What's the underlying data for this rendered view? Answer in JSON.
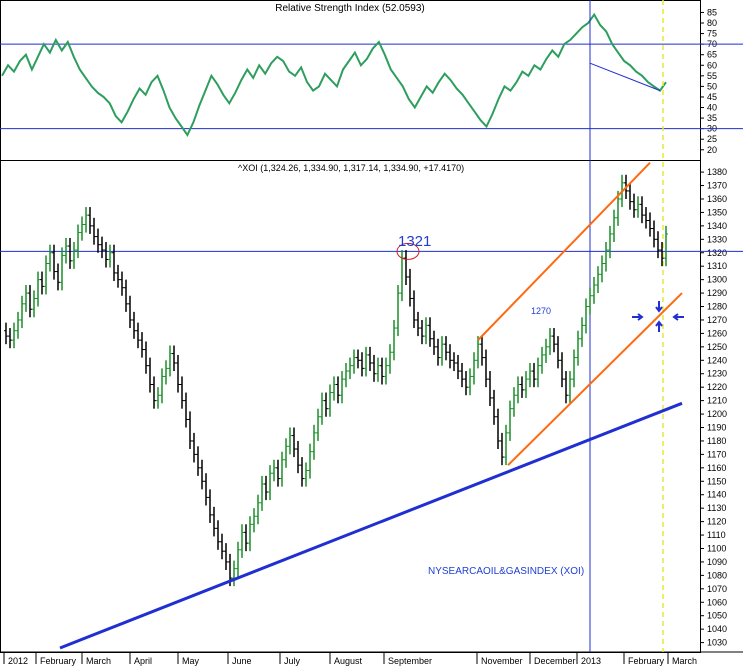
{
  "chart_data": [
    {
      "type": "line",
      "title": "Relative Strength Index (52.0593)",
      "y_ticks": [
        20,
        25,
        30,
        35,
        40,
        45,
        50,
        55,
        60,
        65,
        70,
        75,
        80,
        85
      ],
      "ylim": [
        18,
        89
      ],
      "overbought": 70,
      "oversold": 30,
      "line_color": "#2e9e5e",
      "series": [
        {
          "values": [
            55,
            60,
            57,
            62,
            65,
            58,
            64,
            70,
            66,
            72,
            67,
            71,
            64,
            58,
            54,
            50,
            47,
            45,
            42,
            36,
            33,
            38,
            44,
            49,
            46,
            52,
            55,
            48,
            40,
            35,
            31,
            27,
            33,
            41,
            48,
            55,
            51,
            46,
            42,
            47,
            53,
            58,
            54,
            60,
            56,
            61,
            64,
            62,
            57,
            55,
            59,
            52,
            48,
            50,
            56,
            53,
            50,
            58,
            62,
            66,
            60,
            63,
            68,
            71,
            65,
            58,
            54,
            50,
            44,
            40,
            45,
            50,
            47,
            52,
            56,
            53,
            49,
            46,
            42,
            38,
            34,
            31,
            37,
            44,
            50,
            48,
            52,
            57,
            55,
            60,
            58,
            63,
            67,
            64,
            70,
            72,
            75,
            78,
            80,
            84,
            79,
            76,
            70,
            66,
            62,
            60,
            57,
            55,
            52,
            50,
            48,
            52
          ]
        }
      ],
      "annotation_line": {
        "from": 61,
        "to": 48
      }
    },
    {
      "type": "line",
      "title": "^XOI (1,324.26, 1,334.90, 1,317.14, 1,334.90, +17.4170)",
      "ylabel": "",
      "y_ticks": [
        1030,
        1040,
        1050,
        1060,
        1070,
        1080,
        1090,
        1100,
        1110,
        1120,
        1130,
        1140,
        1150,
        1160,
        1170,
        1180,
        1190,
        1200,
        1210,
        1220,
        1230,
        1240,
        1250,
        1260,
        1270,
        1280,
        1290,
        1300,
        1310,
        1320,
        1330,
        1340,
        1350,
        1360,
        1370,
        1380
      ],
      "ylim": [
        1023,
        1389
      ],
      "x_ticks": [
        "2012",
        "February",
        "March",
        "April",
        "May",
        "June",
        "July",
        "August",
        "September",
        "November",
        "December",
        "2013",
        "February",
        "March"
      ],
      "horizontal_line": 1321,
      "annotations": [
        {
          "text": "1321",
          "color": "#1f3fd1"
        },
        {
          "text": "1270",
          "color": "#1f3fd1"
        },
        {
          "text": "NYSEARCAOIL&GASINDEX (XOI)",
          "color": "#1f3fd1"
        }
      ],
      "trendline_color": "#1f2fd1",
      "channel_color": "#ff6a10",
      "up_color": "#1a8f2a",
      "down_color": "#000000",
      "series": [
        {
          "values": [
            1262,
            1258,
            1255,
            1262,
            1270,
            1282,
            1290,
            1278,
            1286,
            1300,
            1295,
            1312,
            1320,
            1306,
            1298,
            1318,
            1325,
            1314,
            1322,
            1335,
            1341,
            1348,
            1340,
            1332,
            1326,
            1322,
            1315,
            1320,
            1305,
            1300,
            1294,
            1282,
            1270,
            1262,
            1255,
            1248,
            1236,
            1222,
            1210,
            1214,
            1228,
            1234,
            1245,
            1238,
            1222,
            1210,
            1196,
            1180,
            1170,
            1160,
            1150,
            1138,
            1125,
            1115,
            1105,
            1098,
            1090,
            1078,
            1085,
            1099,
            1112,
            1104,
            1118,
            1124,
            1134,
            1148,
            1142,
            1156,
            1160,
            1152,
            1166,
            1176,
            1184,
            1174,
            1162,
            1152,
            1158,
            1172,
            1186,
            1198,
            1210,
            1204,
            1216,
            1222,
            1214,
            1226,
            1232,
            1236,
            1242,
            1240,
            1234,
            1244,
            1238,
            1230,
            1236,
            1228,
            1236,
            1246,
            1264,
            1290,
            1316,
            1302,
            1286,
            1270,
            1264,
            1258,
            1266,
            1256,
            1250,
            1242,
            1252,
            1246,
            1240,
            1238,
            1232,
            1226,
            1220,
            1228,
            1240,
            1252,
            1242,
            1226,
            1212,
            1198,
            1180,
            1168,
            1186,
            1204,
            1214,
            1222,
            1218,
            1226,
            1232,
            1226,
            1236,
            1244,
            1250,
            1258,
            1252,
            1240,
            1226,
            1214,
            1226,
            1242,
            1256,
            1266,
            1280,
            1288,
            1296,
            1304,
            1312,
            1322,
            1334,
            1346,
            1360,
            1372,
            1366,
            1358,
            1352,
            1356,
            1348,
            1344,
            1338,
            1330,
            1322,
            1316,
            1334
          ]
        }
      ]
    }
  ]
}
